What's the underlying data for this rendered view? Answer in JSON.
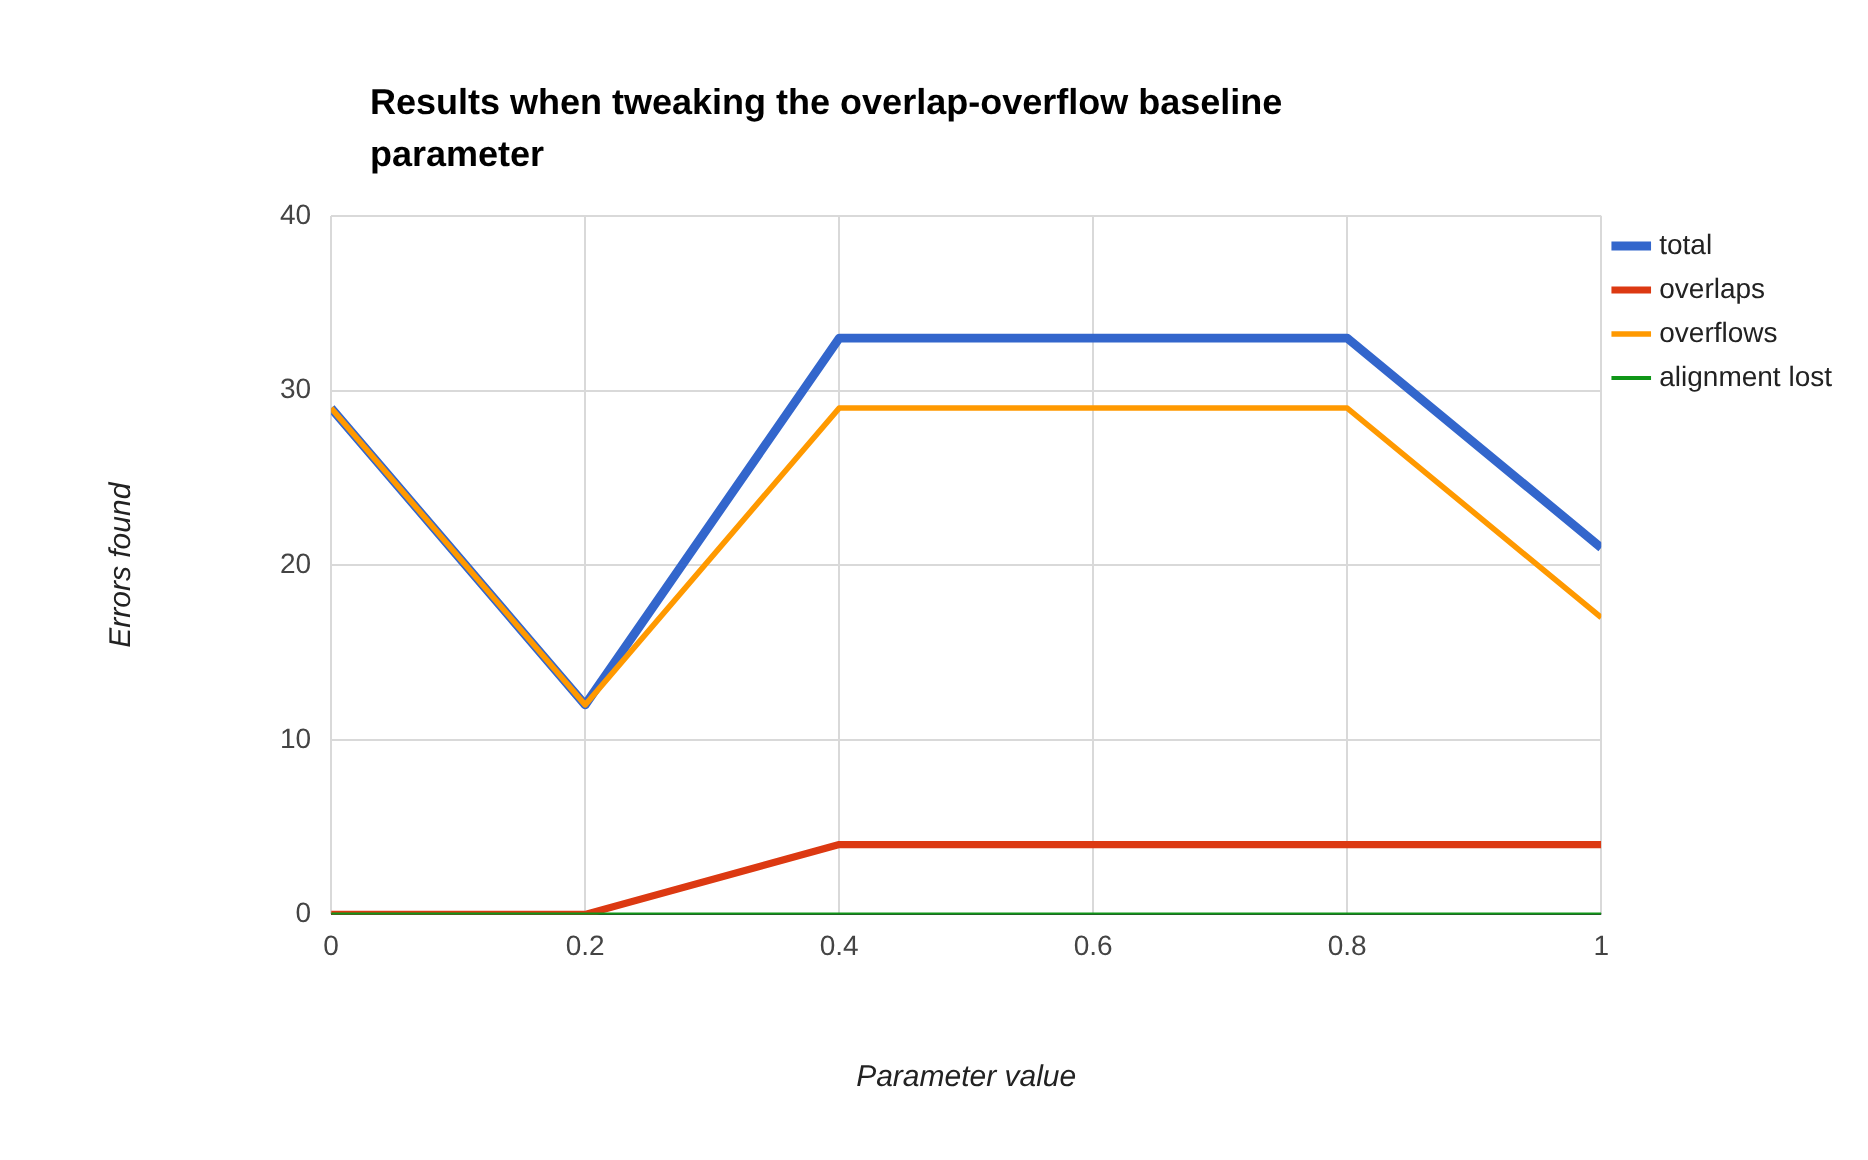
{
  "chart_data": {
    "type": "line",
    "title": "Results when tweaking the overlap-overflow baseline parameter",
    "xlabel": "Parameter value",
    "ylabel": "Errors found",
    "x": [
      0,
      0.2,
      0.4,
      0.6,
      0.8,
      1
    ],
    "series": [
      {
        "name": "total",
        "color": "#3366cc",
        "values": [
          29,
          12,
          33,
          33,
          33,
          21
        ]
      },
      {
        "name": "overlaps",
        "color": "#dc3912",
        "values": [
          0,
          0,
          4,
          4,
          4,
          4
        ]
      },
      {
        "name": "overflows",
        "color": "#ff9900",
        "values": [
          29,
          12,
          29,
          29,
          29,
          17
        ]
      },
      {
        "name": "alignment lost",
        "color": "#109618",
        "values": [
          0,
          0,
          0,
          0,
          0,
          0
        ]
      }
    ],
    "xlim": [
      0,
      1
    ],
    "xticks": [
      0,
      0.2,
      0.4,
      0.6,
      0.8,
      1
    ],
    "ylim": [
      0,
      40
    ],
    "yticks": [
      0,
      10,
      20,
      30,
      40
    ],
    "grid": true,
    "legend": "right",
    "marker": "none",
    "line_style": "solid"
  }
}
